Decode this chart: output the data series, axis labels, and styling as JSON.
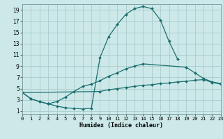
{
  "xlabel": "Humidex (Indice chaleur)",
  "bg_color": "#cce8e8",
  "grid_color": "#aacccc",
  "line_color": "#1a6e6e",
  "xlim": [
    0,
    23
  ],
  "ylim": [
    0.5,
    20
  ],
  "xticks": [
    0,
    1,
    2,
    3,
    4,
    5,
    6,
    7,
    8,
    9,
    10,
    11,
    12,
    13,
    14,
    15,
    16,
    17,
    18,
    19,
    20,
    21,
    22,
    23
  ],
  "yticks": [
    1,
    3,
    5,
    7,
    9,
    11,
    13,
    15,
    17,
    19
  ],
  "series": [
    {
      "x": [
        0,
        1,
        2,
        3,
        4,
        5,
        6,
        7,
        8,
        9,
        10,
        11,
        12,
        13,
        14,
        15,
        16,
        17,
        18
      ],
      "y": [
        4.3,
        3.2,
        2.7,
        2.3,
        1.9,
        1.6,
        1.5,
        1.4,
        1.5,
        10.5,
        14.2,
        16.4,
        18.2,
        19.2,
        19.6,
        19.2,
        17.2,
        13.4,
        10.2
      ]
    },
    {
      "x": [
        0,
        1,
        2,
        3,
        4,
        5,
        6,
        7,
        8,
        9,
        10,
        11,
        12,
        13,
        14,
        19,
        20,
        21,
        22,
        23
      ],
      "y": [
        4.3,
        3.2,
        2.7,
        2.3,
        2.7,
        3.5,
        4.5,
        5.4,
        5.8,
        6.4,
        7.2,
        7.8,
        8.5,
        9.0,
        9.4,
        8.8,
        7.8,
        6.8,
        6.2,
        5.9
      ]
    },
    {
      "x": [
        0,
        9,
        10,
        11,
        12,
        13,
        14,
        15,
        16,
        17,
        18,
        19,
        20,
        21,
        22,
        23
      ],
      "y": [
        4.3,
        4.5,
        4.8,
        5.0,
        5.2,
        5.4,
        5.6,
        5.7,
        5.9,
        6.0,
        6.2,
        6.3,
        6.5,
        6.6,
        6.1,
        5.8
      ]
    }
  ]
}
